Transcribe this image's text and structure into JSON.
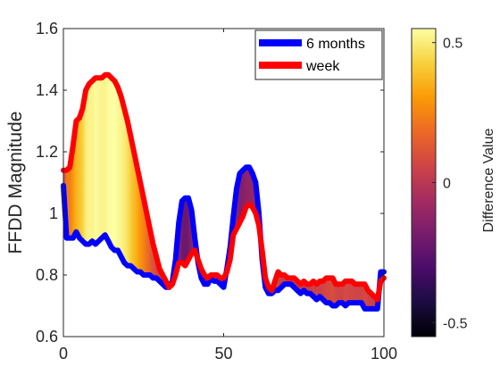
{
  "chart_data": {
    "type": "area",
    "title": "",
    "xlabel": "",
    "ylabel": "FFDD Magnitude",
    "xlim": [
      0,
      100
    ],
    "ylim": [
      0.6,
      1.6
    ],
    "xticks": [
      0,
      50,
      100
    ],
    "yticks": [
      0.6,
      0.8,
      1.0,
      1.2,
      1.4,
      1.6
    ],
    "ytick_labels": [
      "0.6",
      "0.8",
      "1",
      "1.2",
      "1.4",
      "1.6"
    ],
    "legend_position": "top-right",
    "grid": false,
    "fill": "difference between series shaded by colorbar value",
    "series": [
      {
        "name": "6 months",
        "color": "#0000ff",
        "x": [
          0,
          1,
          2,
          3,
          4,
          5,
          6,
          7,
          8,
          9,
          10,
          11,
          12,
          13,
          14,
          15,
          16,
          17,
          18,
          19,
          20,
          21,
          22,
          23,
          24,
          25,
          26,
          27,
          28,
          29,
          30,
          31,
          32,
          33,
          34,
          35,
          36,
          37,
          38,
          39,
          40,
          41,
          42,
          43,
          44,
          45,
          46,
          47,
          48,
          49,
          50,
          51,
          52,
          53,
          54,
          55,
          56,
          57,
          58,
          59,
          60,
          61,
          62,
          63,
          64,
          65,
          66,
          67,
          68,
          69,
          70,
          71,
          72,
          73,
          74,
          75,
          76,
          77,
          78,
          79,
          80,
          81,
          82,
          83,
          84,
          85,
          86,
          87,
          88,
          89,
          90,
          91,
          92,
          93,
          94,
          95,
          96,
          97,
          98,
          99,
          100
        ],
        "values": [
          1.09,
          0.92,
          0.92,
          0.92,
          0.94,
          0.92,
          0.91,
          0.9,
          0.9,
          0.91,
          0.9,
          0.91,
          0.92,
          0.93,
          0.91,
          0.89,
          0.88,
          0.88,
          0.86,
          0.84,
          0.83,
          0.83,
          0.82,
          0.81,
          0.81,
          0.8,
          0.8,
          0.8,
          0.79,
          0.79,
          0.78,
          0.77,
          0.76,
          0.76,
          0.78,
          0.85,
          0.97,
          1.04,
          1.05,
          1.05,
          1.01,
          0.92,
          0.84,
          0.79,
          0.77,
          0.77,
          0.79,
          0.78,
          0.78,
          0.77,
          0.76,
          0.82,
          0.89,
          0.99,
          1.08,
          1.13,
          1.14,
          1.15,
          1.15,
          1.13,
          1.1,
          1.0,
          0.85,
          0.76,
          0.74,
          0.74,
          0.75,
          0.75,
          0.76,
          0.77,
          0.77,
          0.77,
          0.76,
          0.75,
          0.74,
          0.75,
          0.74,
          0.74,
          0.73,
          0.72,
          0.73,
          0.72,
          0.71,
          0.71,
          0.7,
          0.7,
          0.71,
          0.71,
          0.7,
          0.71,
          0.71,
          0.71,
          0.71,
          0.71,
          0.69,
          0.69,
          0.69,
          0.69,
          0.69,
          0.81,
          0.81
        ]
      },
      {
        "name": "week",
        "color": "#ff0000",
        "x": [
          0,
          1,
          2,
          3,
          4,
          5,
          6,
          7,
          8,
          9,
          10,
          11,
          12,
          13,
          14,
          15,
          16,
          17,
          18,
          19,
          20,
          21,
          22,
          23,
          24,
          25,
          26,
          27,
          28,
          29,
          30,
          31,
          32,
          33,
          34,
          35,
          36,
          37,
          38,
          39,
          40,
          41,
          42,
          43,
          44,
          45,
          46,
          47,
          48,
          49,
          50,
          51,
          52,
          53,
          54,
          55,
          56,
          57,
          58,
          59,
          60,
          61,
          62,
          63,
          64,
          65,
          66,
          67,
          68,
          69,
          70,
          71,
          72,
          73,
          74,
          75,
          76,
          77,
          78,
          79,
          80,
          81,
          82,
          83,
          84,
          85,
          86,
          87,
          88,
          89,
          90,
          91,
          92,
          93,
          94,
          95,
          96,
          97,
          98,
          99,
          100
        ],
        "values": [
          1.14,
          1.14,
          1.15,
          1.22,
          1.3,
          1.31,
          1.34,
          1.4,
          1.42,
          1.43,
          1.44,
          1.44,
          1.44,
          1.45,
          1.45,
          1.44,
          1.43,
          1.41,
          1.38,
          1.34,
          1.3,
          1.25,
          1.2,
          1.15,
          1.1,
          1.05,
          1.0,
          0.95,
          0.9,
          0.86,
          0.82,
          0.8,
          0.78,
          0.76,
          0.77,
          0.8,
          0.84,
          0.84,
          0.83,
          0.85,
          0.87,
          0.88,
          0.85,
          0.82,
          0.8,
          0.79,
          0.8,
          0.8,
          0.8,
          0.79,
          0.79,
          0.81,
          0.85,
          0.93,
          0.95,
          0.97,
          0.99,
          1.02,
          1.03,
          1.02,
          1.0,
          0.96,
          0.88,
          0.79,
          0.76,
          0.75,
          0.78,
          0.81,
          0.8,
          0.8,
          0.79,
          0.79,
          0.79,
          0.78,
          0.77,
          0.78,
          0.77,
          0.77,
          0.78,
          0.77,
          0.78,
          0.78,
          0.79,
          0.79,
          0.79,
          0.77,
          0.77,
          0.77,
          0.78,
          0.78,
          0.78,
          0.77,
          0.77,
          0.77,
          0.77,
          0.75,
          0.74,
          0.73,
          0.72,
          0.78,
          0.79
        ]
      }
    ],
    "colorbar": {
      "label": "Difference Value",
      "range": [
        -0.55,
        0.55
      ],
      "ticks": [
        0.5,
        0,
        -0.5
      ],
      "tick_labels": [
        "0.5",
        "0",
        "-0.5"
      ],
      "colormap": "inferno",
      "stops": [
        "#000004",
        "#1b0c41",
        "#4a0c6b",
        "#781c6d",
        "#a52c60",
        "#cf4446",
        "#ed6925",
        "#fb9b06",
        "#f7d13d",
        "#fcffa4"
      ]
    }
  }
}
